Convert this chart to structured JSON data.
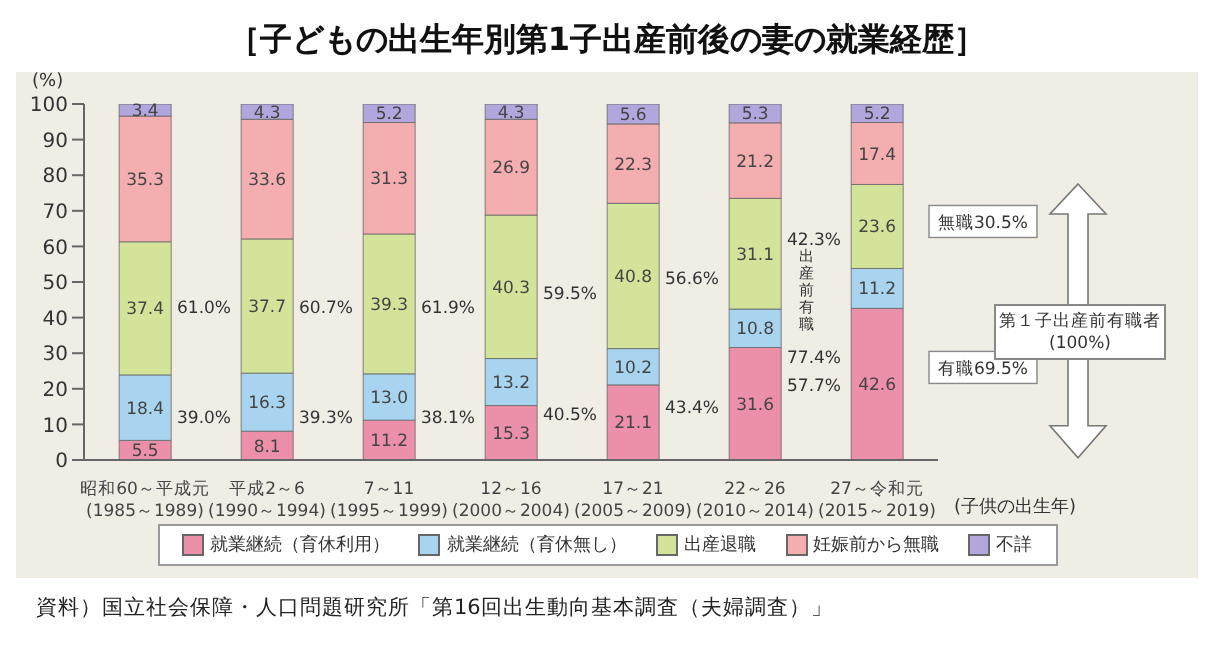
{
  "chart_data": {
    "type": "bar",
    "title": "［子どもの出生年別第1子出産前後の妻の就業経歴］",
    "xlabel": "(子供の出生年)",
    "ylabel": "(%)",
    "categories": [
      "昭和60～平成元\n(1985～1989)",
      "平成2～6\n(1990～1994)",
      "7～11\n(1995～1999)",
      "12～16\n(2000～2004)",
      "17～21\n(2005～2009)",
      "22～26\n(2010～2014)",
      "27～令和元\n(2015～2019)"
    ],
    "stacked": true,
    "legend": "bottom",
    "ylim": [
      0,
      100
    ],
    "yticks": [
      0,
      10,
      20,
      30,
      40,
      50,
      60,
      70,
      80,
      90,
      100
    ],
    "series": [
      {
        "name": "就業継続（育休利用）",
        "color": "#ec8fa8",
        "values": [
          5.5,
          8.1,
          11.2,
          15.3,
          21.1,
          31.6,
          42.6
        ],
        "value_labels": [
          "5.5",
          "8.1",
          "11.2",
          "15.3",
          "21.1",
          "31.6",
          "42.6"
        ]
      },
      {
        "name": "就業継続（育休無し）",
        "color": "#a8d4ef",
        "values": [
          18.4,
          16.3,
          13.0,
          13.2,
          10.2,
          10.8,
          11.2
        ],
        "value_labels": [
          "18.4",
          "16.3",
          "13.0",
          "13.2",
          "10.2",
          "10.8",
          "11.2"
        ]
      },
      {
        "name": "出産退職",
        "color": "#d3e39a",
        "values": [
          37.4,
          37.7,
          39.3,
          40.3,
          40.8,
          31.1,
          23.6
        ],
        "value_labels": [
          "37.4",
          "37.7",
          "39.3",
          "40.3",
          "40.8",
          "31.1",
          "23.6"
        ]
      },
      {
        "name": "妊娠前から無職",
        "color": "#f4aeb0",
        "values": [
          35.3,
          33.6,
          31.3,
          26.9,
          22.3,
          21.2,
          17.4
        ],
        "value_labels": [
          "35.3",
          "33.6",
          "31.3",
          "26.9",
          "22.3",
          "21.2",
          "17.4"
        ]
      },
      {
        "name": "不詳",
        "color": "#b3a6dc",
        "values": [
          3.4,
          4.3,
          5.2,
          4.3,
          5.6,
          5.3,
          5.2
        ],
        "value_labels": [
          "3.4",
          "4.3",
          "5.2",
          "4.3",
          "5.6",
          "5.3",
          "5.2"
        ]
      }
    ],
    "annotations": [
      "61.0%",
      "39.0%",
      "60.7%",
      "39.3%",
      "61.9%",
      "38.1%",
      "59.5%",
      "40.5%",
      "56.6%",
      "43.4%",
      "42.3%",
      "出産前有職",
      "77.4%",
      "57.7%",
      "無職30.5%",
      "有職69.5%",
      "第１子出産前有職者\n(100%)",
      "資料）国立社会保障・人口問題研究所「第16回出生動向基本調査（夫婦調査）」"
    ]
  }
}
